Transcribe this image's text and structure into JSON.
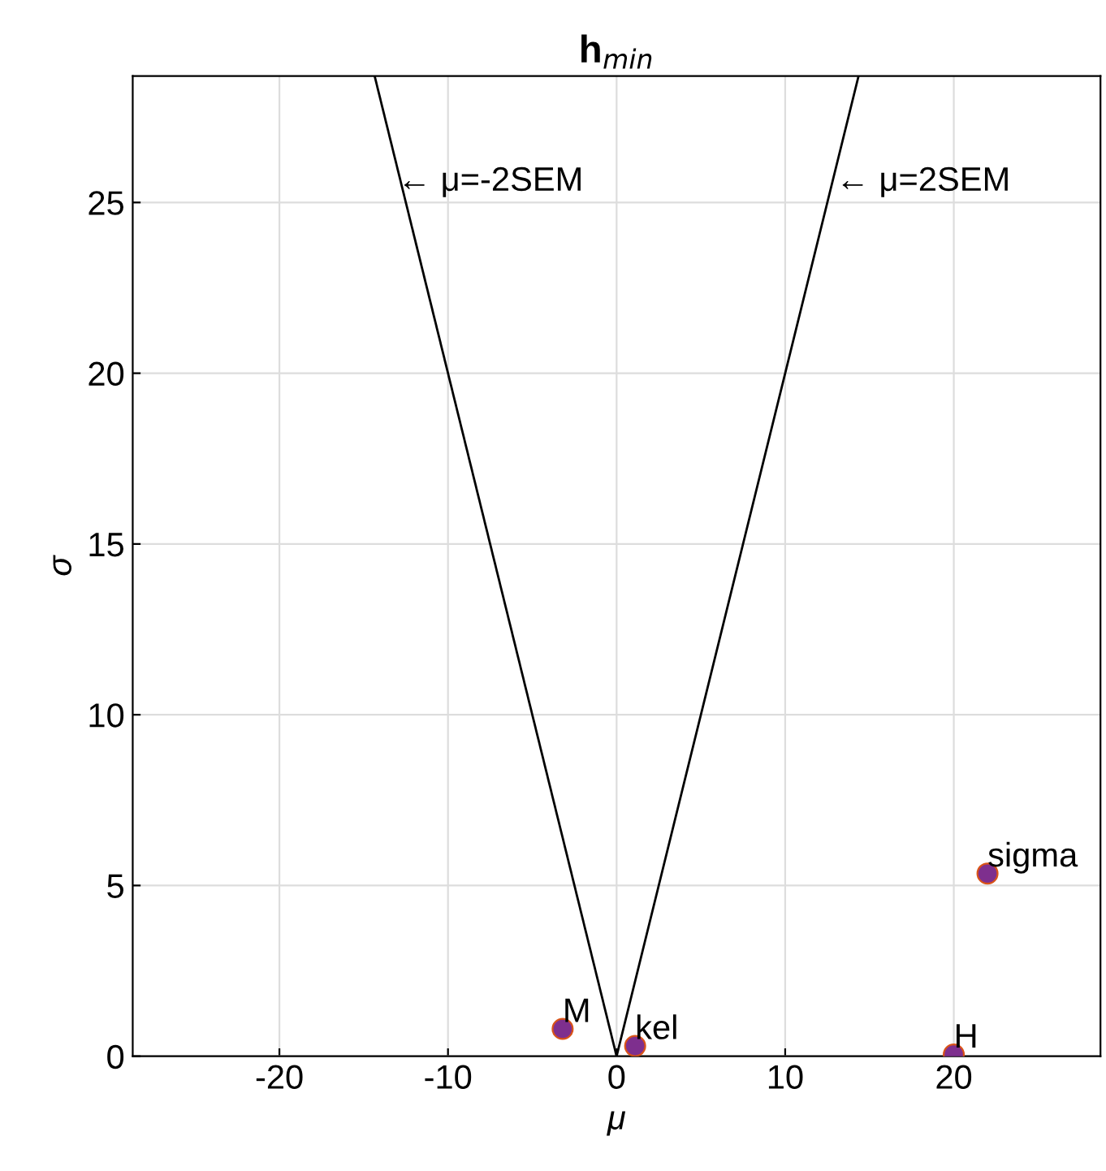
{
  "chart_data": {
    "type": "scatter",
    "title": "h$_{min}$",
    "xlabel": "μ",
    "ylabel": "σ",
    "xlim": [
      -28.7,
      28.7
    ],
    "ylim": [
      0,
      28.7
    ],
    "xticks": [
      -20,
      -10,
      0,
      10,
      20
    ],
    "yticks": [
      0,
      5,
      10,
      15,
      20,
      25
    ],
    "grid": true,
    "series": [
      {
        "type": "line",
        "marker": "none",
        "color": "#000000",
        "x": [
          0,
          -14.35
        ],
        "values": [
          0,
          28.7
        ]
      },
      {
        "type": "line",
        "marker": "none",
        "color": "#000000",
        "x": [
          0,
          14.35
        ],
        "values": [
          0,
          28.7
        ]
      },
      {
        "marker": "circle",
        "color": "#7e2f8e",
        "x": [
          -3.2,
          1.1,
          20,
          22
        ],
        "values": [
          0.8,
          0.3,
          0.05,
          5.35
        ]
      }
    ],
    "annotations": [
      {
        "text": "← μ=-2SEM",
        "x": -13,
        "y": 25.6
      },
      {
        "text": "← μ=2SEM",
        "x": 13,
        "y": 25.6
      },
      {
        "text": "M",
        "x": -3.2,
        "y": 0.8
      },
      {
        "text": "kel",
        "x": 1.1,
        "y": 0.3
      },
      {
        "text": "H",
        "x": 20,
        "y": 0.05
      },
      {
        "text": "sigma",
        "x": 22,
        "y": 5.35
      }
    ]
  }
}
